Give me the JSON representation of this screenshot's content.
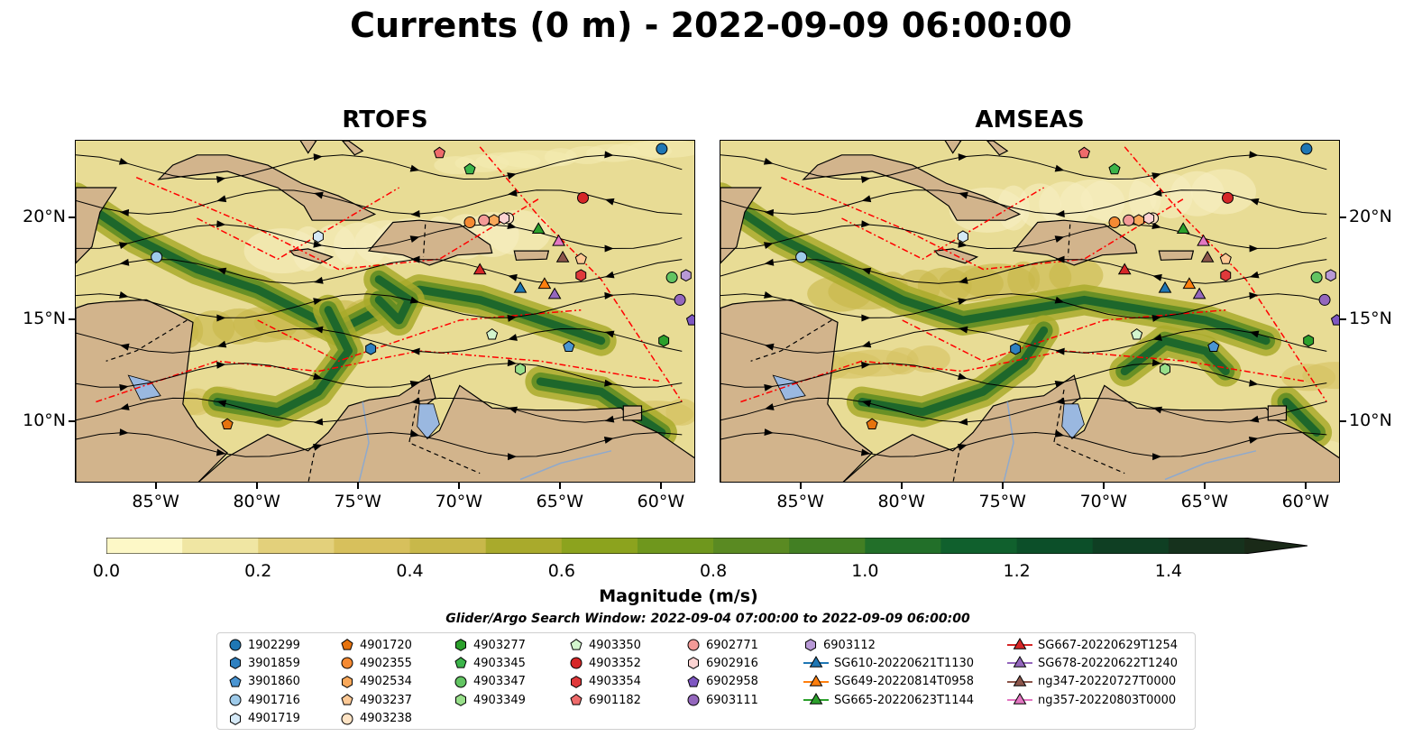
{
  "title": "Currents (0 m) - 2022-09-09 06:00:00",
  "panels": [
    {
      "title": "RTOFS"
    },
    {
      "title": "AMSEAS"
    }
  ],
  "axes": {
    "x_ticks": [
      "85°W",
      "80°W",
      "75°W",
      "70°W",
      "65°W",
      "60°W"
    ],
    "x_tick_values": [
      -85,
      -80,
      -75,
      -70,
      -65,
      -60
    ],
    "y_ticks": [
      "20°N",
      "15°N",
      "10°N"
    ],
    "y_tick_values": [
      20,
      15,
      10
    ],
    "lon_range": [
      -89,
      -58.3
    ],
    "lat_range": [
      7,
      23.8
    ]
  },
  "colorbar": {
    "title": "Magnitude (m/s)",
    "tick_labels": [
      "0.0",
      "0.2",
      "0.4",
      "0.6",
      "0.8",
      "1.0",
      "1.2",
      "1.4"
    ],
    "tick_values": [
      0.0,
      0.2,
      0.4,
      0.6,
      0.8,
      1.0,
      1.2,
      1.4
    ],
    "range": [
      0,
      1.5
    ],
    "extend": "max",
    "colors": [
      "#fdf8c7",
      "#f0e6a3",
      "#e3d07b",
      "#d7c05c",
      "#c8b84a",
      "#a9aa2c",
      "#8ca31e",
      "#6f971d",
      "#5a8a22",
      "#427f23",
      "#226f29",
      "#10602d",
      "#0c4f29",
      "#0f3f23",
      "#16321d",
      "#1a2a18"
    ]
  },
  "search_window": "Glider/Argo Search Window: 2022-09-04 07:00:00 to 2022-09-09 06:00:00",
  "colors": {
    "land": "#d2b48c",
    "ocean_outside": "#9ab8e0",
    "boundary_red": "#ff0000"
  },
  "legend": {
    "items": [
      {
        "label": "1902299",
        "marker": "circle",
        "color": "#1f77b4"
      },
      {
        "label": "3901859",
        "marker": "hexagon",
        "color": "#2e80c0"
      },
      {
        "label": "3901860",
        "marker": "pentagon",
        "color": "#4a95d2"
      },
      {
        "label": "4901716",
        "marker": "circle",
        "color": "#9ecae9"
      },
      {
        "label": "4901719",
        "marker": "hexagon",
        "color": "#d5e9f7"
      },
      {
        "label": "4901720",
        "marker": "pentagon",
        "color": "#e6730e"
      },
      {
        "label": "4902355",
        "marker": "circle",
        "color": "#f58a33"
      },
      {
        "label": "4902534",
        "marker": "hexagon",
        "color": "#f9a85a"
      },
      {
        "label": "4903237",
        "marker": "pentagon",
        "color": "#fdc995"
      },
      {
        "label": "4903238",
        "marker": "circle",
        "color": "#fee3c4"
      },
      {
        "label": "4903277",
        "marker": "hexagon",
        "color": "#2ca02c"
      },
      {
        "label": "4903345",
        "marker": "pentagon",
        "color": "#3cb44a"
      },
      {
        "label": "4903347",
        "marker": "circle",
        "color": "#62c462"
      },
      {
        "label": "4903349",
        "marker": "hexagon",
        "color": "#98df8a"
      },
      {
        "label": "4903350",
        "marker": "pentagon",
        "color": "#d3f5cd"
      },
      {
        "label": "4903352",
        "marker": "circle",
        "color": "#d62728"
      },
      {
        "label": "4903354",
        "marker": "hexagon",
        "color": "#e0393b"
      },
      {
        "label": "6901182",
        "marker": "pentagon",
        "color": "#ef6b6b"
      },
      {
        "label": "6902771",
        "marker": "circle",
        "color": "#f39a97"
      },
      {
        "label": "6902916",
        "marker": "hexagon",
        "color": "#fcd3d2"
      },
      {
        "label": "6902958",
        "marker": "pentagon",
        "color": "#7e57c2"
      },
      {
        "label": "6903111",
        "marker": "circle",
        "color": "#9467bd"
      },
      {
        "label": "6903112",
        "marker": "hexagon",
        "color": "#b899d6"
      },
      {
        "label": "SG610-20220621T1130",
        "marker": "triangle",
        "color": "#1f77b4"
      },
      {
        "label": "SG649-20220814T0958",
        "marker": "triangle",
        "color": "#ff7f0e"
      },
      {
        "label": "SG665-20220623T1144",
        "marker": "triangle",
        "color": "#2ca02c"
      },
      {
        "label": "SG667-20220629T1254",
        "marker": "triangle",
        "color": "#d62728"
      },
      {
        "label": "SG678-20220622T1240",
        "marker": "triangle",
        "color": "#9467bd"
      },
      {
        "label": "ng347-20220727T0000",
        "marker": "triangle",
        "color": "#8c564b"
      },
      {
        "label": "ng357-20220803T0000",
        "marker": "triangle",
        "color": "#e377c2"
      }
    ]
  },
  "observations": [
    {
      "id": "1902299",
      "lon": -60.0,
      "lat": 23.4
    },
    {
      "id": "3901859",
      "lon": -74.4,
      "lat": 13.6
    },
    {
      "id": "3901860",
      "lon": -64.6,
      "lat": 13.7
    },
    {
      "id": "4901716",
      "lon": -85.0,
      "lat": 18.1
    },
    {
      "id": "4901719",
      "lon": -77.0,
      "lat": 19.1
    },
    {
      "id": "4901720",
      "lon": -81.5,
      "lat": 9.9
    },
    {
      "id": "4902355",
      "lon": -69.5,
      "lat": 19.8
    },
    {
      "id": "4902534",
      "lon": -68.3,
      "lat": 19.9
    },
    {
      "id": "4903237",
      "lon": -64.0,
      "lat": 18.0
    },
    {
      "id": "4903238",
      "lon": -67.6,
      "lat": 20.0
    },
    {
      "id": "4903277",
      "lon": -59.9,
      "lat": 14.0
    },
    {
      "id": "4903345",
      "lon": -69.5,
      "lat": 22.4
    },
    {
      "id": "4903347",
      "lon": -59.5,
      "lat": 17.1
    },
    {
      "id": "4903349",
      "lon": -67.0,
      "lat": 12.6
    },
    {
      "id": "4903350",
      "lon": -68.4,
      "lat": 14.3
    },
    {
      "id": "4903352",
      "lon": -63.9,
      "lat": 21.0
    },
    {
      "id": "4903354",
      "lon": -64.0,
      "lat": 17.2
    },
    {
      "id": "6901182",
      "lon": -71.0,
      "lat": 23.2
    },
    {
      "id": "6902771",
      "lon": -68.8,
      "lat": 19.9
    },
    {
      "id": "6902916",
      "lon": -67.8,
      "lat": 20.0
    },
    {
      "id": "6902958",
      "lon": -58.5,
      "lat": 15.0
    },
    {
      "id": "6903111",
      "lon": -59.1,
      "lat": 16.0
    },
    {
      "id": "6903112",
      "lon": -58.8,
      "lat": 17.2
    },
    {
      "id": "SG610-20220621T1130",
      "lon": -67.0,
      "lat": 16.6
    },
    {
      "id": "SG649-20220814T0958",
      "lon": -65.8,
      "lat": 16.8
    },
    {
      "id": "SG665-20220623T1144",
      "lon": -66.1,
      "lat": 19.5
    },
    {
      "id": "SG667-20220629T1254",
      "lon": -69.0,
      "lat": 17.5
    },
    {
      "id": "SG678-20220622T1240",
      "lon": -65.3,
      "lat": 16.3
    },
    {
      "id": "ng347-20220727T0000",
      "lon": -64.9,
      "lat": 18.1
    },
    {
      "id": "ng357-20220803T0000",
      "lon": -65.1,
      "lat": 18.9
    }
  ]
}
